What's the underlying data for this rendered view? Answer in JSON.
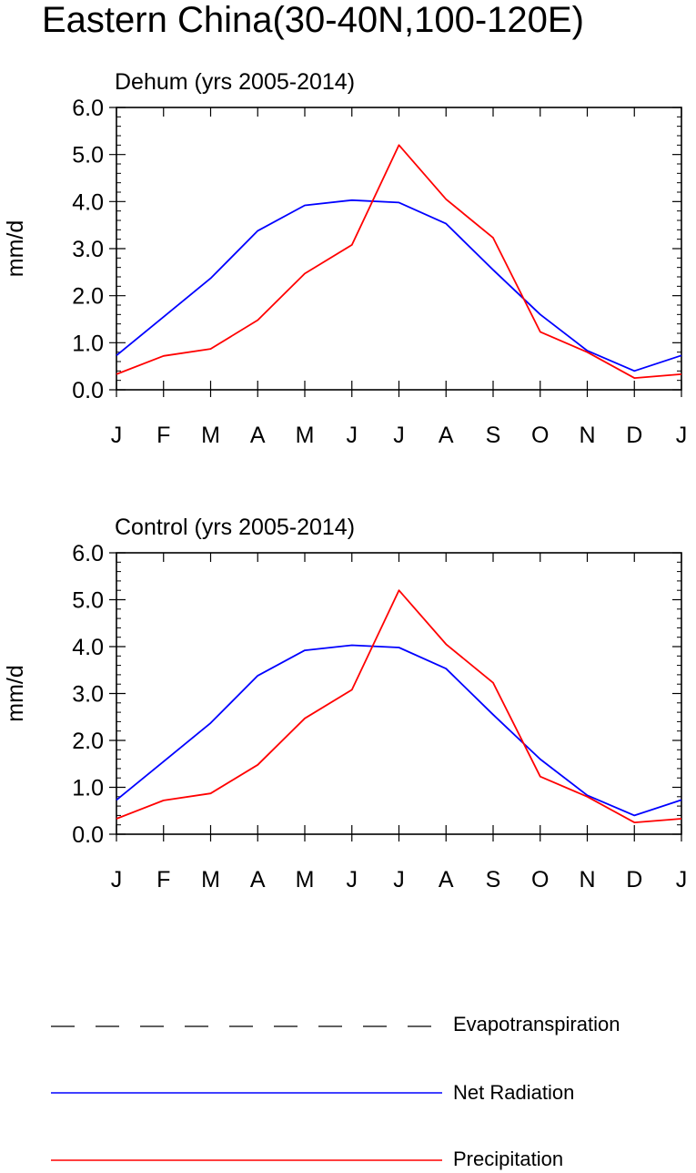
{
  "title": "Eastern China(30-40N,100-120E)",
  "legend": {
    "items": [
      {
        "label": "Evapotranspiration",
        "color": "#000000",
        "style": "dashed"
      },
      {
        "label": "Net Radiation",
        "color": "#0000ff",
        "style": "solid"
      },
      {
        "label": "Precipitation",
        "color": "#ff0000",
        "style": "solid"
      }
    ]
  },
  "chart_data": [
    {
      "type": "line",
      "title": "Dehum (yrs 2005-2014)",
      "ylabel": "mm/d",
      "xlabel": "",
      "ylim": [
        0,
        6
      ],
      "yticks": [
        0,
        1,
        2,
        3,
        4,
        5,
        6
      ],
      "ytick_labels": [
        "0.0",
        "1.0",
        "2.0",
        "3.0",
        "4.0",
        "5.0",
        "6.0"
      ],
      "categories": [
        "J",
        "F",
        "M",
        "A",
        "M",
        "J",
        "J",
        "A",
        "S",
        "O",
        "N",
        "D",
        "J"
      ],
      "series": [
        {
          "name": "Net Radiation",
          "color": "#0000ff",
          "values": [
            0.73,
            1.55,
            2.37,
            3.38,
            3.92,
            4.03,
            3.98,
            3.53,
            2.55,
            1.6,
            0.83,
            0.4,
            0.73
          ]
        },
        {
          "name": "Precipitation",
          "color": "#ff0000",
          "values": [
            0.33,
            0.72,
            0.87,
            1.48,
            2.47,
            3.08,
            5.2,
            4.05,
            3.23,
            1.23,
            0.8,
            0.25,
            0.33
          ]
        }
      ]
    },
    {
      "type": "line",
      "title": "Control (yrs 2005-2014)",
      "ylabel": "mm/d",
      "xlabel": "",
      "ylim": [
        0,
        6
      ],
      "yticks": [
        0,
        1,
        2,
        3,
        4,
        5,
        6
      ],
      "ytick_labels": [
        "0.0",
        "1.0",
        "2.0",
        "3.0",
        "4.0",
        "5.0",
        "6.0"
      ],
      "categories": [
        "J",
        "F",
        "M",
        "A",
        "M",
        "J",
        "J",
        "A",
        "S",
        "O",
        "N",
        "D",
        "J"
      ],
      "series": [
        {
          "name": "Net Radiation",
          "color": "#0000ff",
          "values": [
            0.73,
            1.55,
            2.37,
            3.38,
            3.92,
            4.03,
            3.98,
            3.53,
            2.55,
            1.6,
            0.83,
            0.4,
            0.73
          ]
        },
        {
          "name": "Precipitation",
          "color": "#ff0000",
          "values": [
            0.33,
            0.72,
            0.87,
            1.48,
            2.47,
            3.08,
            5.2,
            4.05,
            3.23,
            1.23,
            0.8,
            0.25,
            0.33
          ]
        }
      ]
    }
  ]
}
